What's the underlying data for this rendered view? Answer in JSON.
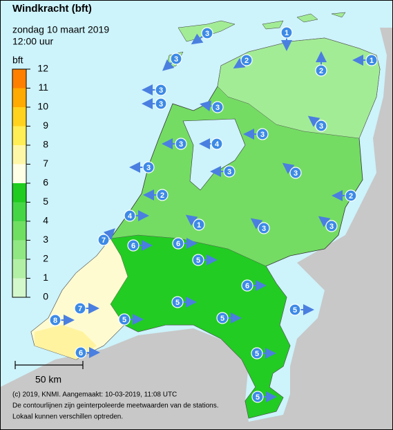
{
  "header": {
    "title": "Windkracht (bft)",
    "date": "zondag 10 maart 2019",
    "time": "12:00 uur"
  },
  "legend": {
    "label": "bft",
    "ticks": [
      0,
      1,
      2,
      3,
      4,
      5,
      6,
      7,
      8,
      9,
      10,
      11,
      12
    ],
    "colors": [
      "#d4f7cc",
      "#b2f0a6",
      "#90e883",
      "#6fdf61",
      "#45d645",
      "#1fcc1f",
      "#ffffe6",
      "#fff7a8",
      "#ffee55",
      "#ffd21e",
      "#ffaa00",
      "#ff8000"
    ]
  },
  "stations": [
    {
      "value": 3
    },
    {
      "value": 1
    },
    {
      "value": 2
    },
    {
      "value": 1
    },
    {
      "value": 3
    },
    {
      "value": 2
    },
    {
      "value": 3
    },
    {
      "value": 3
    },
    {
      "value": 3
    },
    {
      "value": 3
    },
    {
      "value": 3
    },
    {
      "value": 3
    },
    {
      "value": 4
    },
    {
      "value": 3
    },
    {
      "value": 3
    },
    {
      "value": 3
    },
    {
      "value": 2
    },
    {
      "value": 2
    },
    {
      "value": 4
    },
    {
      "value": 1
    },
    {
      "value": 3
    },
    {
      "value": 3
    },
    {
      "value": 7
    },
    {
      "value": 6
    },
    {
      "value": 6
    },
    {
      "value": 5
    },
    {
      "value": 6
    },
    {
      "value": 5
    },
    {
      "value": 5
    },
    {
      "value": 7
    },
    {
      "value": 8
    },
    {
      "value": 5
    },
    {
      "value": 5
    },
    {
      "value": 5
    },
    {
      "value": 6
    },
    {
      "value": 5
    }
  ],
  "scale": {
    "label": "50 km"
  },
  "footer": [
    "(c) 2019, KNMI. Aangemaakt: 10-03-2019, 11:08 UTC",
    "De contourlijnen zijn geinterpoleerde meetwaarden van de stations.",
    "Lokaal kunnen verschillen optreden."
  ]
}
